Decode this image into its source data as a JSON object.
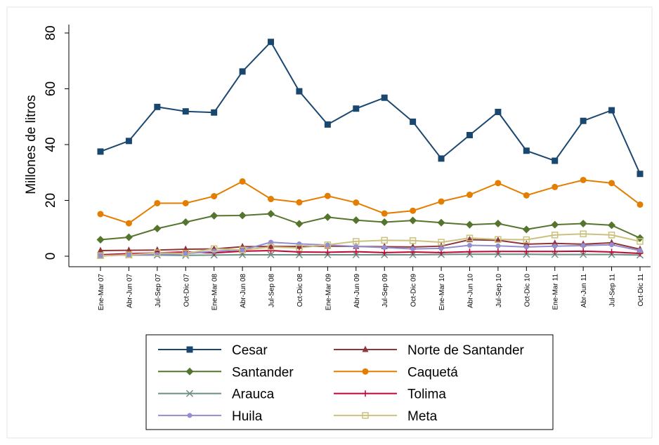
{
  "chart_data": {
    "type": "line",
    "ylabel": "Millones de litros",
    "categories": [
      "Ene-Mar 07",
      "Abr-Jun 07",
      "Jul-Sep 07",
      "Oct-Dic 07",
      "Ene-Mar 08",
      "Abr-Jun 08",
      "Jul-Sep 08",
      "Oct-Dic 08",
      "Ene-Mar 09",
      "Abr-Jun 09",
      "Jul-Sep 09",
      "Oct-Dic 09",
      "Ene-Mar 10",
      "Abr-Jun 10",
      "Jul-Sep 10",
      "Oct-Dic 10",
      "Ene-Mar 11",
      "Abr-Jun 11",
      "Jul-Sep 11",
      "Oct-Dic 11"
    ],
    "ylim": [
      0,
      80
    ],
    "yticks": [
      0,
      20,
      40,
      60,
      80
    ],
    "grid": false,
    "legend": "bottom",
    "series": [
      {
        "name": "Cesar",
        "color": "#1a476f",
        "marker": "square",
        "values": [
          37.5,
          41.3,
          53.5,
          51.9,
          51.5,
          66.2,
          76.8,
          59.1,
          47.2,
          52.9,
          56.8,
          48.2,
          35.0,
          43.4,
          51.7,
          37.8,
          34.2,
          48.5,
          52.3,
          29.5
        ]
      },
      {
        "name": "Norte de Santander",
        "color": "#90353b",
        "marker": "triangle",
        "values": [
          2.0,
          2.1,
          2.2,
          2.5,
          2.6,
          3.4,
          3.5,
          3.5,
          3.6,
          3.5,
          3.4,
          3.3,
          3.6,
          5.9,
          5.7,
          4.3,
          4.6,
          4.3,
          4.8,
          2.5
        ]
      },
      {
        "name": "Santander",
        "color": "#55752f",
        "marker": "diamond",
        "values": [
          5.9,
          6.8,
          9.9,
          12.2,
          14.5,
          14.6,
          15.2,
          11.6,
          14.0,
          12.9,
          12.2,
          12.8,
          12.0,
          11.3,
          11.7,
          9.6,
          11.3,
          11.7,
          11.1,
          6.5
        ]
      },
      {
        "name": "Caquetá",
        "color": "#e37e00",
        "marker": "circle",
        "values": [
          15.1,
          11.8,
          19.0,
          19.0,
          21.5,
          26.8,
          20.5,
          19.3,
          21.6,
          19.2,
          15.3,
          16.3,
          19.6,
          22.0,
          26.2,
          21.8,
          24.8,
          27.3,
          26.2,
          18.5
        ]
      },
      {
        "name": "Arauca",
        "color": "#6e8e84",
        "marker": "x",
        "values": [
          0.3,
          0.4,
          0.4,
          0.3,
          0.4,
          0.5,
          0.5,
          0.5,
          0.5,
          0.5,
          0.5,
          0.5,
          0.6,
          0.7,
          0.7,
          0.7,
          0.6,
          0.6,
          0.6,
          0.4
        ]
      },
      {
        "name": "Tolima",
        "color": "#c10534",
        "marker": "plus",
        "values": [
          0.5,
          0.9,
          1.2,
          1.5,
          1.2,
          1.8,
          2.0,
          1.5,
          1.4,
          1.6,
          1.3,
          1.5,
          1.3,
          1.6,
          1.7,
          1.7,
          1.7,
          1.8,
          1.5,
          1.0
        ]
      },
      {
        "name": "Huila",
        "color": "#938dd2",
        "marker": "smallcircle",
        "values": [
          0.1,
          0.5,
          0.6,
          0.9,
          1.8,
          2.2,
          5.0,
          4.4,
          4.0,
          3.5,
          3.1,
          2.6,
          2.8,
          3.9,
          3.7,
          3.3,
          3.6,
          3.8,
          4.1,
          2.0
        ]
      },
      {
        "name": "Meta",
        "color": "#cac27e",
        "marker": "hollowsquare",
        "values": [
          0.2,
          0.5,
          1.2,
          1.0,
          2.7,
          2.2,
          3.3,
          3.0,
          4.1,
          5.3,
          5.7,
          5.6,
          5.0,
          6.5,
          6.0,
          5.9,
          7.6,
          8.0,
          7.6,
          5.3
        ]
      }
    ]
  }
}
